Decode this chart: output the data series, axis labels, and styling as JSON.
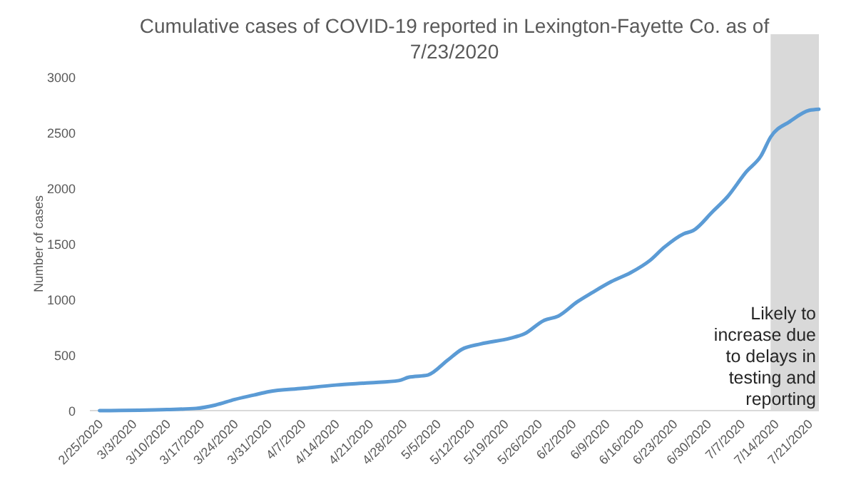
{
  "chart_data": {
    "type": "line",
    "title": "Cumulative cases of COVID-19 reported in Lexington-Fayette Co.  as of 7/23/2020",
    "ylabel": "Number of cases",
    "x": [
      "2020-02-25",
      "2020-03-10",
      "2020-03-16",
      "2020-03-20",
      "2020-03-24",
      "2020-03-28",
      "2020-03-31",
      "2020-04-07",
      "2020-04-14",
      "2020-04-21",
      "2020-04-27",
      "2020-04-29",
      "2020-05-03",
      "2020-05-07",
      "2020-05-10",
      "2020-05-14",
      "2020-05-20",
      "2020-05-23",
      "2020-05-27",
      "2020-05-30",
      "2020-06-03",
      "2020-06-06",
      "2020-06-10",
      "2020-06-14",
      "2020-06-18",
      "2020-06-21",
      "2020-06-25",
      "2020-06-27",
      "2020-07-01",
      "2020-07-04",
      "2020-07-08",
      "2020-07-11",
      "2020-07-13",
      "2020-07-17",
      "2020-07-21",
      "2020-07-23"
    ],
    "series": [
      {
        "color": "#5b9bd5",
        "values": [
          0,
          10,
          20,
          50,
          100,
          140,
          170,
          200,
          230,
          250,
          270,
          300,
          320,
          450,
          550,
          600,
          650,
          690,
          810,
          850,
          980,
          1060,
          1160,
          1240,
          1350,
          1470,
          1590,
          1620,
          1790,
          1920,
          2150,
          2290,
          2460,
          2600,
          2700,
          2710
        ]
      }
    ],
    "xlim": [
      "2020-02-23",
      "2020-07-23"
    ],
    "xticks": [
      {
        "value": "2020-02-25",
        "label": "2/25/2020"
      },
      {
        "value": "2020-03-03",
        "label": "3/3/2020"
      },
      {
        "value": "2020-03-10",
        "label": "3/10/2020"
      },
      {
        "value": "2020-03-17",
        "label": "3/17/2020"
      },
      {
        "value": "2020-03-24",
        "label": "3/24/2020"
      },
      {
        "value": "2020-03-31",
        "label": "3/31/2020"
      },
      {
        "value": "2020-04-07",
        "label": "4/7/2020"
      },
      {
        "value": "2020-04-14",
        "label": "4/14/2020"
      },
      {
        "value": "2020-04-21",
        "label": "4/21/2020"
      },
      {
        "value": "2020-04-28",
        "label": "4/28/2020"
      },
      {
        "value": "2020-05-05",
        "label": "5/5/2020"
      },
      {
        "value": "2020-05-12",
        "label": "5/12/2020"
      },
      {
        "value": "2020-05-19",
        "label": "5/19/2020"
      },
      {
        "value": "2020-05-26",
        "label": "5/26/2020"
      },
      {
        "value": "2020-06-02",
        "label": "6/2/2020"
      },
      {
        "value": "2020-06-09",
        "label": "6/9/2020"
      },
      {
        "value": "2020-06-16",
        "label": "6/16/2020"
      },
      {
        "value": "2020-06-23",
        "label": "6/23/2020"
      },
      {
        "value": "2020-06-30",
        "label": "6/30/2020"
      },
      {
        "value": "2020-07-07",
        "label": "7/7/2020"
      },
      {
        "value": "2020-07-14",
        "label": "7/14/2020"
      },
      {
        "value": "2020-07-21",
        "label": "7/21/2020"
      }
    ],
    "ylim": [
      0,
      3000
    ],
    "yticks": [
      0,
      500,
      1000,
      1500,
      2000,
      2500,
      3000
    ],
    "bands": [
      {
        "axis": "x",
        "from": "2020-07-13",
        "to": "2020-07-23",
        "label": "Likely to increase due to delays in testing and reporting",
        "color": "#d9d9d9"
      }
    ],
    "marker": "none",
    "line_style": "solid"
  }
}
